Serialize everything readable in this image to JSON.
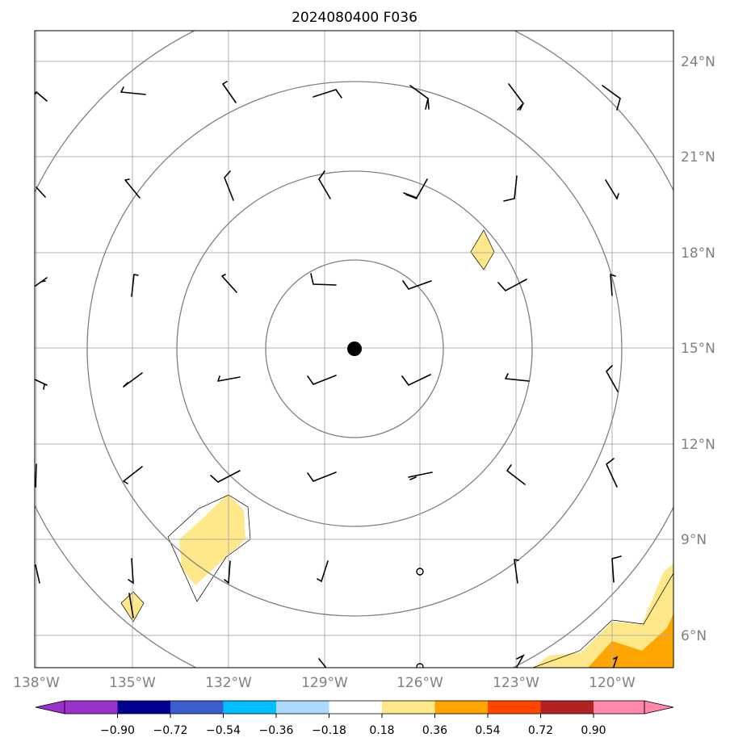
{
  "title": "2024080400 F036",
  "map": {
    "lon_range": [
      -138,
      -118.75
    ],
    "lat_range": [
      5,
      25
    ],
    "lon_ticks": [
      "138°W",
      "135°W",
      "132°W",
      "129°W",
      "126°W",
      "123°W",
      "120°W"
    ],
    "lat_ticks": [
      "24°N",
      "21°N",
      "18°N",
      "15°N",
      "12°N",
      "9°N",
      "6°N"
    ],
    "gridlines": true,
    "center_marker": {
      "lon": -128,
      "lat": 15
    },
    "range_ring_count": 4,
    "colors": {
      "ring": "#808080",
      "grid": "#b0b0b0",
      "barb": "#000000",
      "center": "#000000"
    }
  },
  "colorbar": {
    "tick_labels": [
      "−0.90",
      "−0.72",
      "−0.54",
      "−0.36",
      "−0.18",
      "0.18",
      "0.36",
      "0.54",
      "0.72",
      "0.90"
    ],
    "colors": [
      "#9933cc",
      "#000090",
      "#3a5fcd",
      "#00bfff",
      "#add8ff",
      "#ffffff",
      "#ffe88a",
      "#ffa500",
      "#ff4500",
      "#b22222",
      "#ff88aa"
    ],
    "extend": "both"
  },
  "filled_regions": [
    {
      "name": "region-northeast-small",
      "level": "0.18-0.36",
      "color": "#ffe88a"
    },
    {
      "name": "region-southwest-large",
      "level": "0.18-0.36",
      "color": "#ffe88a"
    },
    {
      "name": "region-southwest-small",
      "level": "0.18-0.36",
      "color": "#ffe88a"
    },
    {
      "name": "region-southeast-corner-outer",
      "level": "0.18-0.36",
      "color": "#ffe88a"
    },
    {
      "name": "region-southeast-corner-inner",
      "level": "0.36-0.54",
      "color": "#ffa500"
    }
  ]
}
